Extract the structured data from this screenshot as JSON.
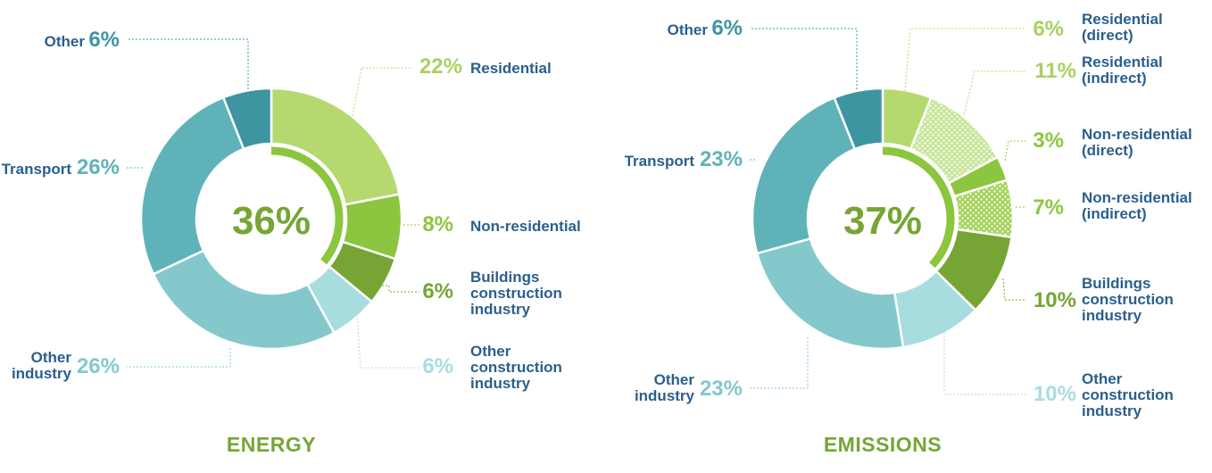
{
  "colors": {
    "label_text": "#2a5f8e",
    "residential": "#b5d96f",
    "non_residential": "#8cc63f",
    "buildings_construction": "#76a535",
    "other_construction": "#a8dde0",
    "other_industry": "#84c8cc",
    "transport": "#5fb3b8",
    "other": "#3e95a2",
    "center_arc": "#8cc63f",
    "center_text": "#76a535",
    "footer_text": "#76a535"
  },
  "chart_data": [
    {
      "type": "pie",
      "title": "ENERGY",
      "center_value": "36%",
      "center_arc_fraction": 0.36,
      "legend": "callout labels",
      "slices": [
        {
          "key": "residential",
          "label": "Residential",
          "value": 22,
          "pct_label": "22%",
          "color": "#b5d96f"
        },
        {
          "key": "non_residential",
          "label": "Non-residential",
          "value": 8,
          "pct_label": "8%",
          "color": "#8cc63f"
        },
        {
          "key": "buildings_construction",
          "label": "Buildings construction industry",
          "value": 6,
          "pct_label": "6%",
          "color": "#76a535"
        },
        {
          "key": "other_construction",
          "label": "Other construction industry",
          "value": 6,
          "pct_label": "6%",
          "color": "#a8dde0"
        },
        {
          "key": "other_industry",
          "label": "Other industry",
          "value": 26,
          "pct_label": "26%",
          "color": "#84c8cc"
        },
        {
          "key": "transport",
          "label": "Transport",
          "value": 26,
          "pct_label": "26%",
          "color": "#5fb3b8"
        },
        {
          "key": "other",
          "label": "Other",
          "value": 6,
          "pct_label": "6%",
          "color": "#3e95a2"
        }
      ]
    },
    {
      "type": "pie",
      "title": "EMISSIONS",
      "center_value": "37%",
      "center_arc_fraction": 0.37,
      "legend": "callout labels",
      "slices": [
        {
          "key": "residential_direct",
          "label": "Residential (direct)",
          "value": 6,
          "pct_label": "6%",
          "color": "#b5d96f",
          "pattern": "solid"
        },
        {
          "key": "residential_indirect",
          "label": "Residential (indirect)",
          "value": 11,
          "pct_label": "11%",
          "color": "#b5d96f",
          "pattern": "dotted"
        },
        {
          "key": "non_residential_direct",
          "label": "Non-residential (direct)",
          "value": 3,
          "pct_label": "3%",
          "color": "#8cc63f",
          "pattern": "solid"
        },
        {
          "key": "non_residential_indirect",
          "label": "Non-residential (indirect)",
          "value": 7,
          "pct_label": "7%",
          "color": "#8cc63f",
          "pattern": "dotted"
        },
        {
          "key": "buildings_construction",
          "label": "Buildings construction industry",
          "value": 10,
          "pct_label": "10%",
          "color": "#76a535",
          "pattern": "solid"
        },
        {
          "key": "other_construction",
          "label": "Other construction industry",
          "value": 10,
          "pct_label": "10%",
          "color": "#a8dde0",
          "pattern": "solid"
        },
        {
          "key": "other_industry",
          "label": "Other industry",
          "value": 23,
          "pct_label": "23%",
          "color": "#84c8cc",
          "pattern": "solid"
        },
        {
          "key": "transport",
          "label": "Transport",
          "value": 23,
          "pct_label": "23%",
          "color": "#5fb3b8",
          "pattern": "solid"
        },
        {
          "key": "other",
          "label": "Other",
          "value": 6,
          "pct_label": "6%",
          "color": "#3e95a2",
          "pattern": "solid"
        }
      ]
    }
  ]
}
